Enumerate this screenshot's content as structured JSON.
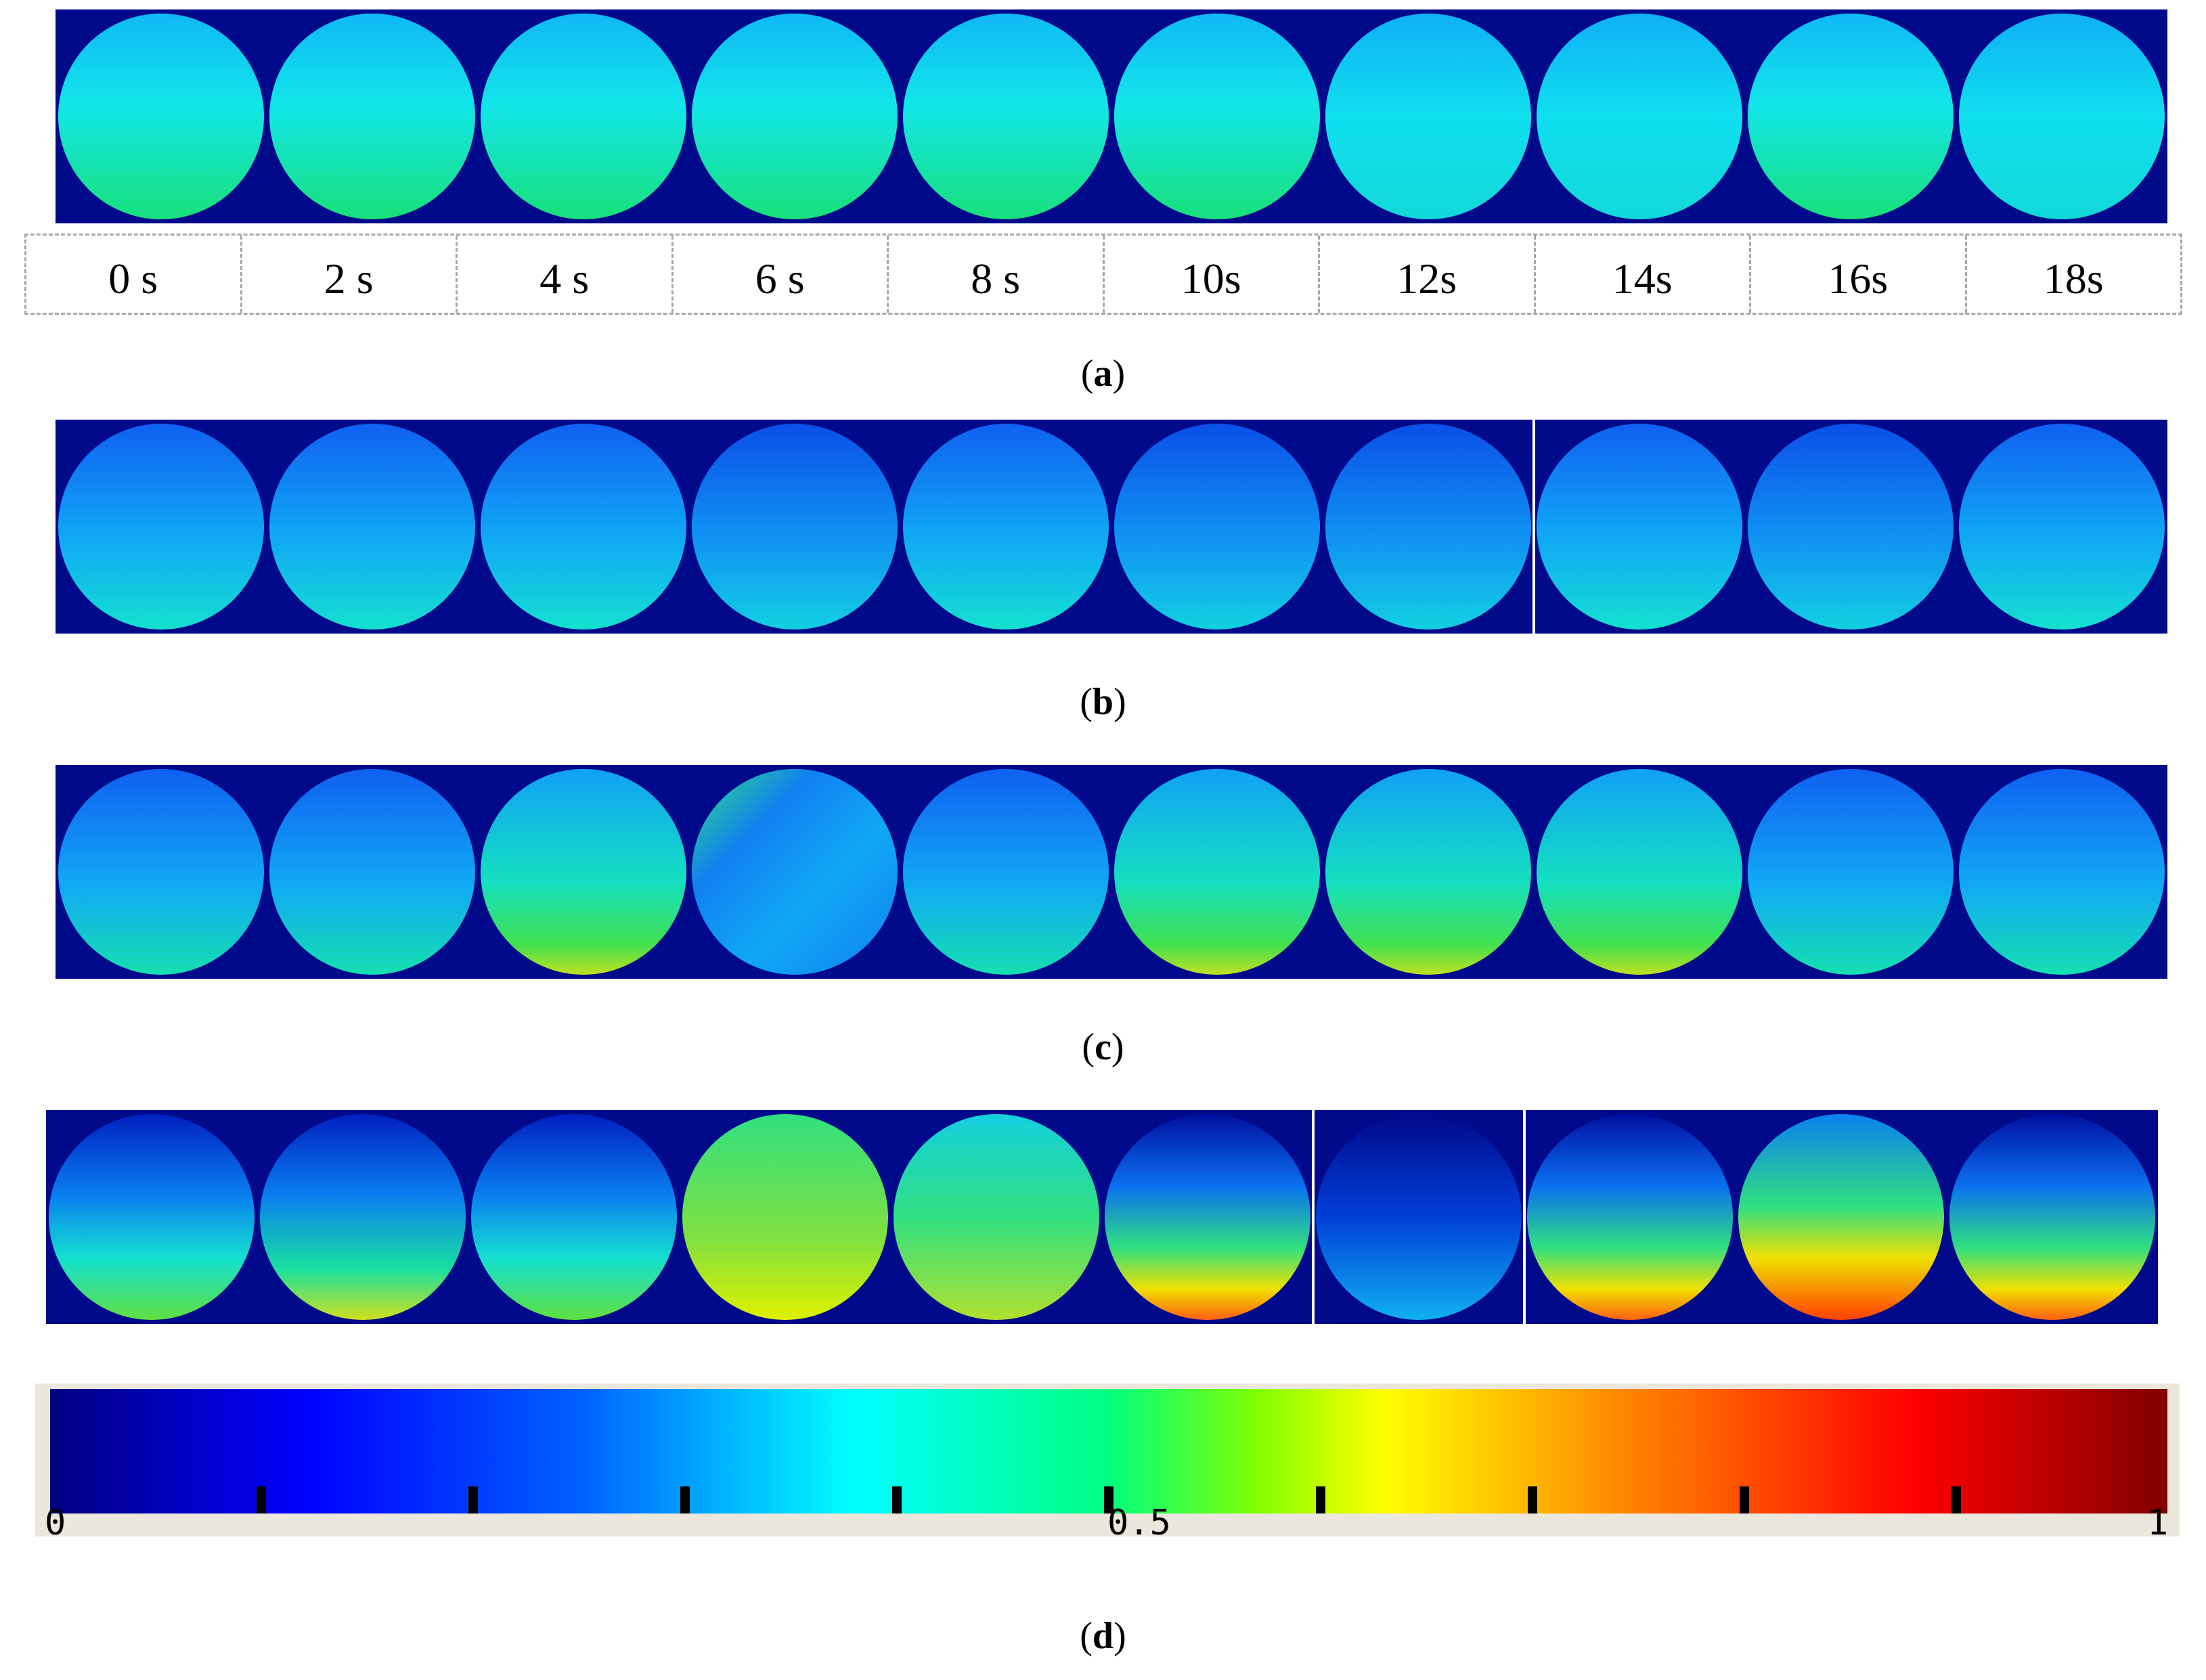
{
  "figure": {
    "time_labels": [
      "0 s",
      "2 s",
      "4 s",
      "6 s",
      "8 s",
      "10s",
      "12s",
      "14s",
      "16s",
      "18s"
    ],
    "panels": [
      {
        "caption_letter": "a"
      },
      {
        "caption_letter": "b"
      },
      {
        "caption_letter": "c"
      },
      {
        "caption_letter": "d"
      }
    ],
    "colorbar": {
      "min_label": "0",
      "mid_label": "0.5",
      "max_label": "1",
      "tick_count": 9
    },
    "colors": {
      "background": "#000a8a",
      "frame_divider": "#ffffff"
    }
  }
}
